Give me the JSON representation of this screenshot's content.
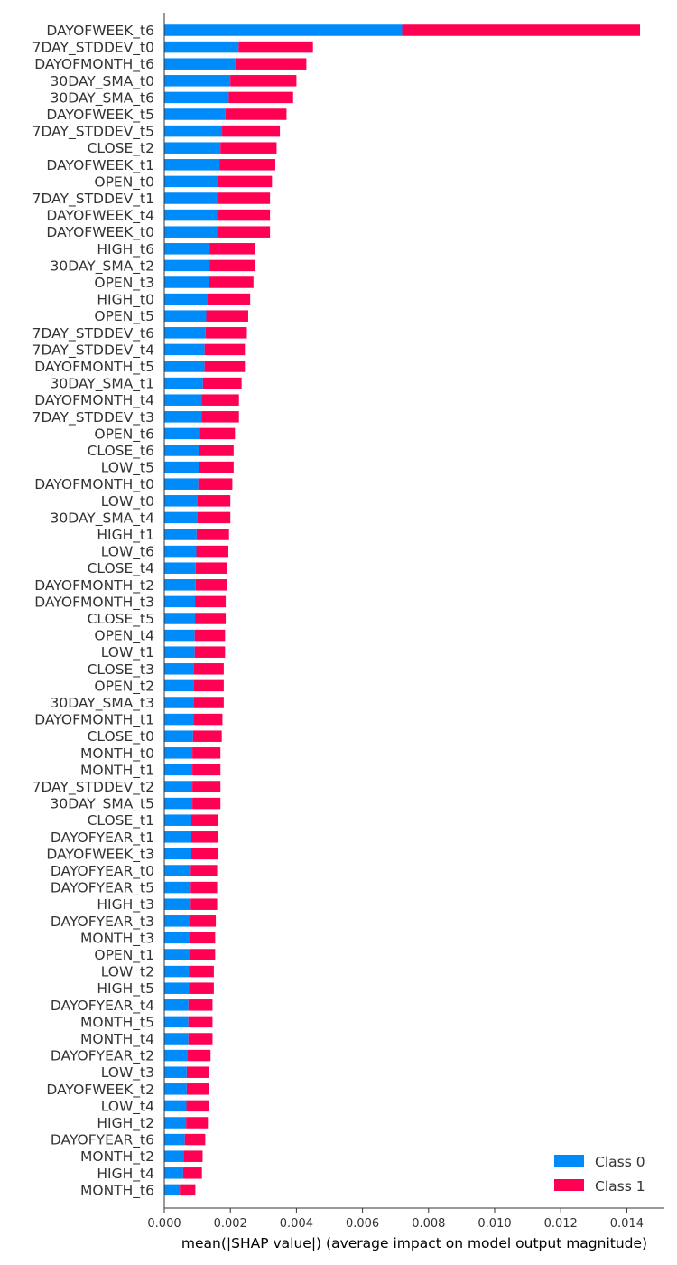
{
  "chart_data": {
    "type": "bar",
    "orientation": "horizontal",
    "stacked": true,
    "xlabel": "mean(|SHAP value|) (average impact on model output magnitude)",
    "ylabel": "",
    "xlim": [
      0,
      0.0151
    ],
    "xticks": [
      "0.000",
      "0.002",
      "0.004",
      "0.006",
      "0.008",
      "0.010",
      "0.012",
      "0.014"
    ],
    "grid": false,
    "legend_position": "bottom-right",
    "categories": [
      "DAYOFWEEK_t6",
      "7DAY_STDDEV_t0",
      "DAYOFMONTH_t6",
      "30DAY_SMA_t0",
      "30DAY_SMA_t6",
      "DAYOFWEEK_t5",
      "7DAY_STDDEV_t5",
      "CLOSE_t2",
      "DAYOFWEEK_t1",
      "OPEN_t0",
      "7DAY_STDDEV_t1",
      "DAYOFWEEK_t4",
      "DAYOFWEEK_t0",
      "HIGH_t6",
      "30DAY_SMA_t2",
      "OPEN_t3",
      "HIGH_t0",
      "OPEN_t5",
      "7DAY_STDDEV_t6",
      "7DAY_STDDEV_t4",
      "DAYOFMONTH_t5",
      "30DAY_SMA_t1",
      "DAYOFMONTH_t4",
      "7DAY_STDDEV_t3",
      "OPEN_t6",
      "CLOSE_t6",
      "LOW_t5",
      "DAYOFMONTH_t0",
      "LOW_t0",
      "30DAY_SMA_t4",
      "HIGH_t1",
      "LOW_t6",
      "CLOSE_t4",
      "DAYOFMONTH_t2",
      "DAYOFMONTH_t3",
      "CLOSE_t5",
      "OPEN_t4",
      "LOW_t1",
      "CLOSE_t3",
      "OPEN_t2",
      "30DAY_SMA_t3",
      "DAYOFMONTH_t1",
      "CLOSE_t0",
      "MONTH_t0",
      "MONTH_t1",
      "7DAY_STDDEV_t2",
      "30DAY_SMA_t5",
      "CLOSE_t1",
      "DAYOFYEAR_t1",
      "DAYOFWEEK_t3",
      "DAYOFYEAR_t0",
      "DAYOFYEAR_t5",
      "HIGH_t3",
      "DAYOFYEAR_t3",
      "MONTH_t3",
      "OPEN_t1",
      "LOW_t2",
      "HIGH_t5",
      "DAYOFYEAR_t4",
      "MONTH_t5",
      "MONTH_t4",
      "DAYOFYEAR_t2",
      "LOW_t3",
      "DAYOFWEEK_t2",
      "LOW_t4",
      "HIGH_t2",
      "DAYOFYEAR_t6",
      "MONTH_t2",
      "HIGH_t4",
      "MONTH_t6"
    ],
    "series": [
      {
        "name": "Class 0",
        "color": "#008bfb",
        "values": [
          0.0072,
          0.00225,
          0.00215,
          0.002,
          0.00195,
          0.00185,
          0.00175,
          0.0017,
          0.00168,
          0.00163,
          0.0016,
          0.0016,
          0.0016,
          0.00138,
          0.00138,
          0.00135,
          0.0013,
          0.00127,
          0.00125,
          0.00122,
          0.00122,
          0.00117,
          0.00113,
          0.00113,
          0.00107,
          0.00105,
          0.00105,
          0.00103,
          0.001,
          0.001,
          0.00098,
          0.00097,
          0.00095,
          0.00095,
          0.00093,
          0.00093,
          0.00092,
          0.00092,
          0.0009,
          0.0009,
          0.0009,
          0.00088,
          0.00087,
          0.00085,
          0.00085,
          0.00085,
          0.00085,
          0.00082,
          0.00082,
          0.00082,
          0.0008,
          0.0008,
          0.0008,
          0.00078,
          0.00077,
          0.00077,
          0.00075,
          0.00075,
          0.00073,
          0.00073,
          0.00073,
          0.0007,
          0.00068,
          0.00068,
          0.00067,
          0.00066,
          0.00062,
          0.00058,
          0.00057,
          0.00047
        ]
      },
      {
        "name": "Class 1",
        "color": "#ff0052",
        "values": [
          0.0072,
          0.00225,
          0.00215,
          0.002,
          0.00195,
          0.00185,
          0.00175,
          0.0017,
          0.00168,
          0.00163,
          0.0016,
          0.0016,
          0.0016,
          0.00138,
          0.00138,
          0.00135,
          0.0013,
          0.00127,
          0.00125,
          0.00122,
          0.00122,
          0.00117,
          0.00113,
          0.00113,
          0.00107,
          0.00105,
          0.00105,
          0.00103,
          0.001,
          0.001,
          0.00098,
          0.00097,
          0.00095,
          0.00095,
          0.00093,
          0.00093,
          0.00092,
          0.00092,
          0.0009,
          0.0009,
          0.0009,
          0.00088,
          0.00087,
          0.00085,
          0.00085,
          0.00085,
          0.00085,
          0.00082,
          0.00082,
          0.00082,
          0.0008,
          0.0008,
          0.0008,
          0.00078,
          0.00077,
          0.00077,
          0.00075,
          0.00075,
          0.00073,
          0.00073,
          0.00073,
          0.0007,
          0.00068,
          0.00068,
          0.00067,
          0.00066,
          0.00062,
          0.00058,
          0.00057,
          0.00047
        ]
      }
    ]
  }
}
